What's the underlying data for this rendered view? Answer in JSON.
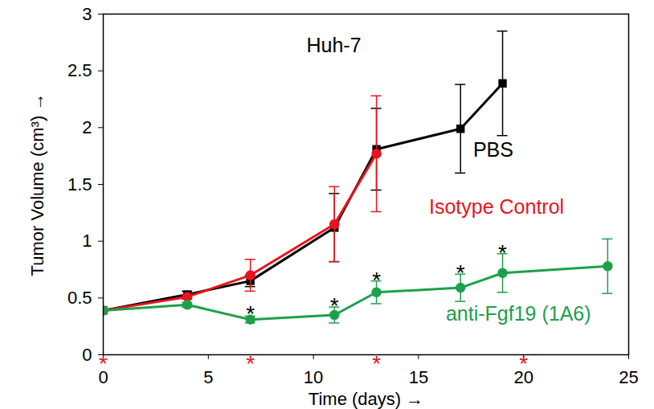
{
  "chart_data": {
    "type": "line",
    "title": "Huh-7",
    "x_label": "Time (days)",
    "y_label": "Tumor Volume (cm³)",
    "xlim": [
      0,
      25
    ],
    "xticks": [
      0,
      5,
      10,
      15,
      20,
      25
    ],
    "ylim": [
      0,
      3
    ],
    "yticks": [
      0,
      0.5,
      1,
      1.5,
      2,
      2.5,
      3
    ],
    "grid": false,
    "series": [
      {
        "name": "PBS",
        "color": "#000000",
        "marker": "square",
        "x": [
          0,
          4,
          7,
          11,
          13,
          17,
          19
        ],
        "values": [
          0.39,
          0.53,
          0.65,
          1.12,
          1.81,
          1.99,
          2.39
        ],
        "errors": [
          0.0,
          0.03,
          0.05,
          0.3,
          0.36,
          0.39,
          0.46
        ],
        "label_at": [
          17.6,
          1.8
        ]
      },
      {
        "name": "Isotype Control",
        "color": "#e8141c",
        "marker": "circle",
        "x": [
          0,
          4,
          7,
          11,
          13
        ],
        "values": [
          0.39,
          0.51,
          0.7,
          1.15,
          1.77
        ],
        "errors": [
          0.0,
          0.02,
          0.14,
          0.33,
          0.51
        ],
        "label_at": [
          15.5,
          1.3
        ]
      },
      {
        "name": "anti-Fgf19 (1A6)",
        "color": "#1ea04b",
        "marker": "circle",
        "x": [
          0,
          4,
          7,
          11,
          13,
          17,
          19,
          24
        ],
        "values": [
          0.39,
          0.44,
          0.31,
          0.35,
          0.55,
          0.59,
          0.72,
          0.78
        ],
        "errors": [
          0.0,
          0.02,
          0.03,
          0.07,
          0.1,
          0.12,
          0.17,
          0.24
        ],
        "label_at": [
          16.3,
          0.36
        ]
      }
    ],
    "significance_markers": {
      "text": "*",
      "color": "#000000",
      "x": [
        7,
        11,
        13,
        17,
        19
      ],
      "y": [
        0.4,
        0.47,
        0.7,
        0.76,
        0.94
      ]
    },
    "dosing_markers": {
      "text": "*",
      "color": "#e8141c",
      "x": [
        0,
        7,
        13,
        20
      ],
      "y": [
        0,
        0,
        0,
        0
      ]
    }
  }
}
